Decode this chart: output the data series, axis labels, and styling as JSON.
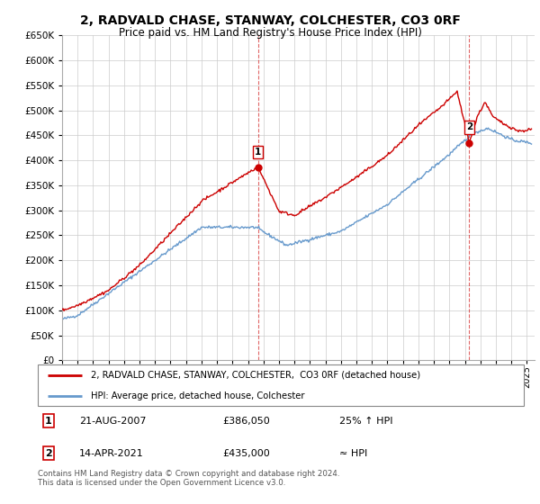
{
  "title": "2, RADVALD CHASE, STANWAY, COLCHESTER, CO3 0RF",
  "subtitle": "Price paid vs. HM Land Registry's House Price Index (HPI)",
  "ylim": [
    0,
    650000
  ],
  "ytick_values": [
    0,
    50000,
    100000,
    150000,
    200000,
    250000,
    300000,
    350000,
    400000,
    450000,
    500000,
    550000,
    600000,
    650000
  ],
  "xlim_start": 1995,
  "xlim_end": 2025.5,
  "sale1_year": 2007.65,
  "sale1_price": 386050,
  "sale2_year": 2021.28,
  "sale2_price": 435000,
  "legend_line1": "2, RADVALD CHASE, STANWAY, COLCHESTER,  CO3 0RF (detached house)",
  "legend_line2": "HPI: Average price, detached house, Colchester",
  "footer": "Contains HM Land Registry data © Crown copyright and database right 2024.\nThis data is licensed under the Open Government Licence v3.0.",
  "red_color": "#cc0000",
  "blue_color": "#6699cc",
  "grid_color": "#cccccc"
}
